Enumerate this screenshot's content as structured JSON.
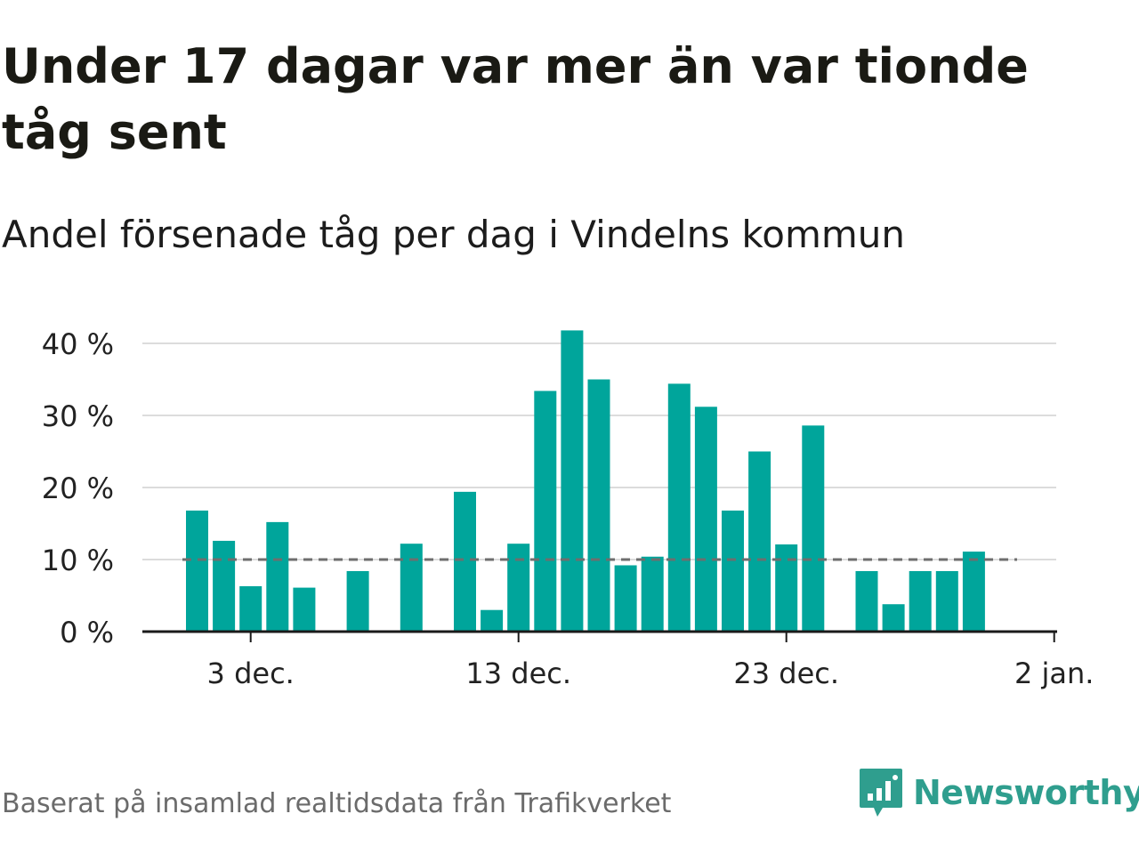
{
  "title": "Under 17 dagar var mer än var tionde tåg sent",
  "subtitle": "Andel försenade tåg per dag i Vindelns kommun",
  "source": "Baserat på insamlad realtidsdata från Trafikverket",
  "brand": {
    "name": "Newsworthy",
    "icon": "newsworthy-logo-icon"
  },
  "colors": {
    "bar": "#00a59b",
    "reference": "#6e6e6e",
    "grid": "#dcdcdc",
    "axis": "#1a1a1a"
  },
  "chart_data": {
    "type": "bar",
    "x_start": "2024-12-01",
    "x": [
      "1 dec.",
      "2 dec.",
      "3 dec.",
      "4 dec.",
      "5 dec.",
      "6 dec.",
      "7 dec.",
      "8 dec.",
      "9 dec.",
      "10 dec.",
      "11 dec.",
      "12 dec.",
      "13 dec.",
      "14 dec.",
      "15 dec.",
      "16 dec.",
      "17 dec.",
      "18 dec.",
      "19 dec.",
      "20 dec.",
      "21 dec.",
      "22 dec.",
      "23 dec.",
      "24 dec.",
      "25 dec.",
      "26 dec.",
      "27 dec.",
      "28 dec.",
      "29 dec.",
      "30 dec.",
      "31 dec."
    ],
    "values": [
      16.8,
      12.6,
      6.3,
      15.2,
      6.1,
      null,
      8.4,
      null,
      12.2,
      null,
      19.4,
      3.0,
      12.2,
      33.4,
      41.8,
      35.0,
      9.2,
      10.4,
      34.4,
      31.2,
      16.8,
      25.0,
      12.1,
      28.6,
      null,
      8.4,
      3.8,
      8.4,
      8.4,
      11.1,
      null
    ],
    "reference_line": {
      "value": 10,
      "style": "dashed"
    },
    "y_ticks": [
      0,
      10,
      20,
      30,
      40
    ],
    "y_tick_labels": [
      "0 %",
      "10 %",
      "20 %",
      "30 %",
      "40 %"
    ],
    "x_tick_labels": [
      "3 dec.",
      "13 dec.",
      "23 dec.",
      "2 jan."
    ],
    "ylim": [
      0,
      42
    ],
    "grid": true,
    "legend": "none",
    "xlabel": "",
    "ylabel": ""
  }
}
